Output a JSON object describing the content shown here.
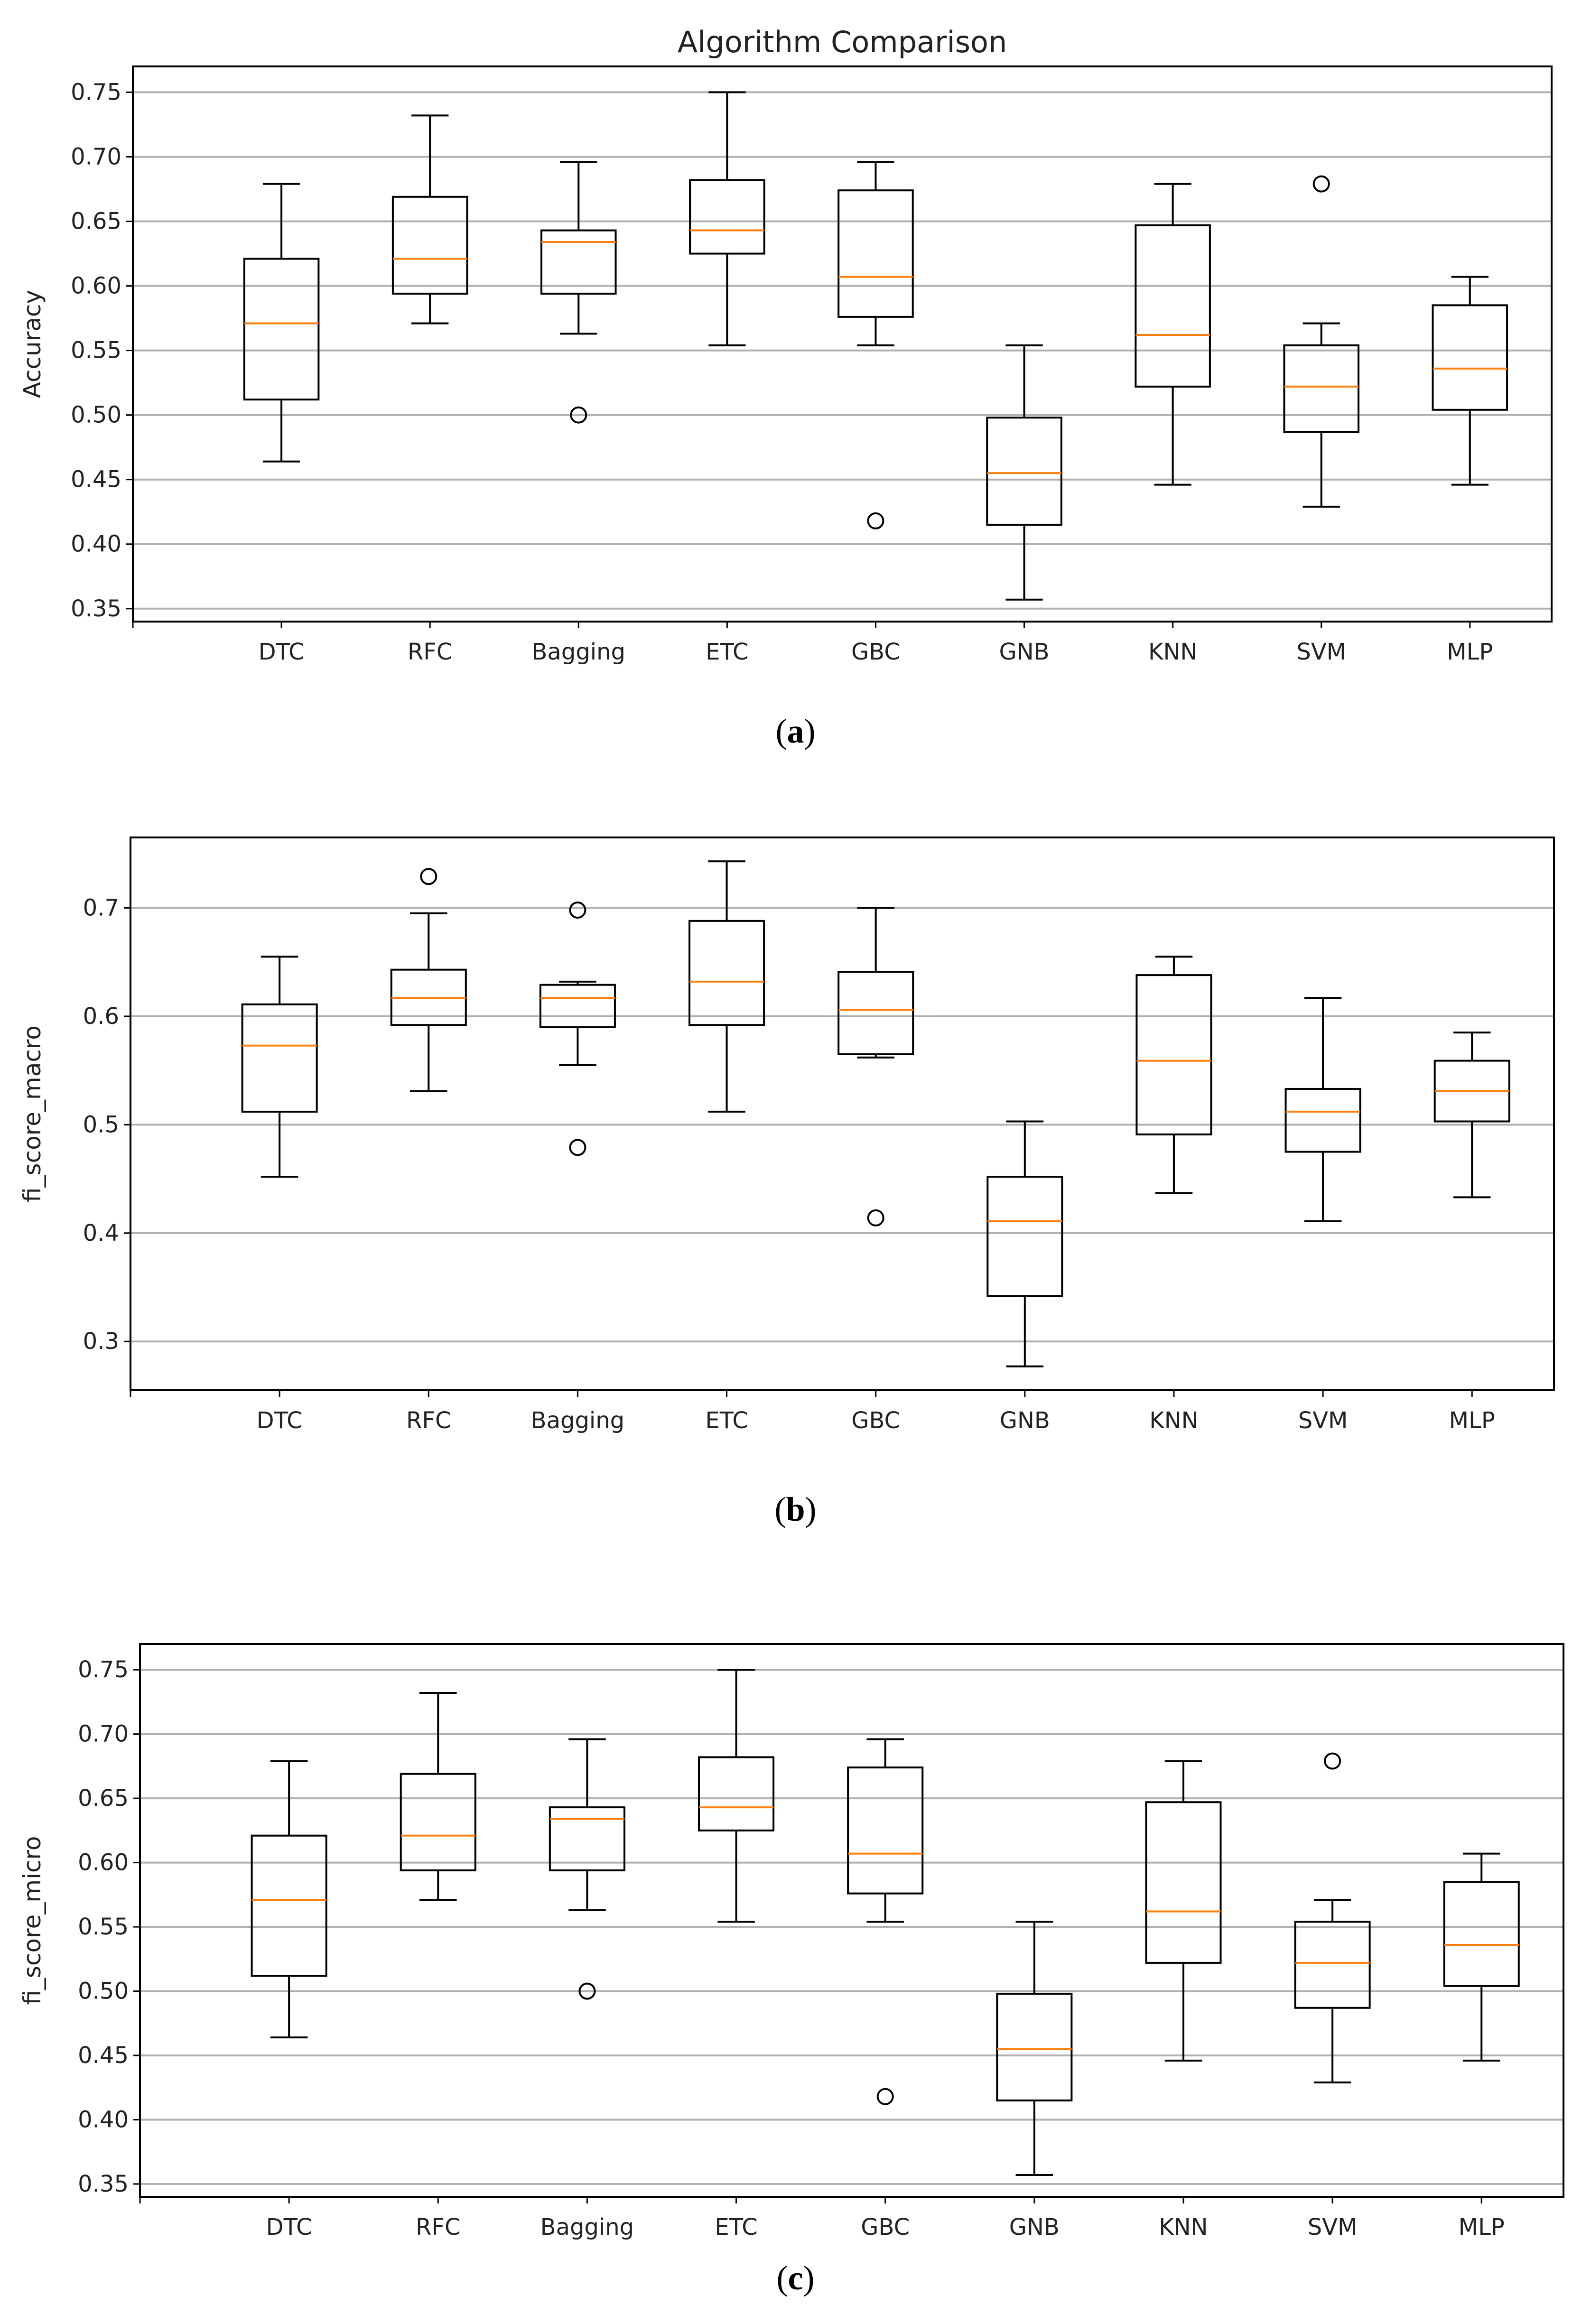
{
  "colors": {
    "box": "#000000",
    "median": "#ff7f0e",
    "grid": "#b0b0b0"
  },
  "chart_data": [
    {
      "type": "boxplot",
      "caption_letter": "a",
      "title": "Algorithm Comparison",
      "xlabel": "",
      "ylabel": "Accuracy",
      "ylim": [
        0.34,
        0.77
      ],
      "yticks": [
        0.35,
        0.4,
        0.45,
        0.5,
        0.55,
        0.6,
        0.65,
        0.7,
        0.75
      ],
      "ytick_labels": [
        "0.35",
        "0.40",
        "0.45",
        "0.50",
        "0.55",
        "0.60",
        "0.65",
        "0.70",
        "0.75"
      ],
      "grid": "horizontal",
      "categories": [
        "DTC",
        "RFC",
        "Bagging",
        "ETC",
        "GBC",
        "GNB",
        "KNN",
        "SVM",
        "MLP"
      ],
      "boxes": [
        {
          "whislo": 0.464,
          "q1": 0.512,
          "med": 0.571,
          "q3": 0.621,
          "whishi": 0.679,
          "fliers": []
        },
        {
          "whislo": 0.571,
          "q1": 0.594,
          "med": 0.621,
          "q3": 0.669,
          "whishi": 0.732,
          "fliers": []
        },
        {
          "whislo": 0.563,
          "q1": 0.594,
          "med": 0.634,
          "q3": 0.643,
          "whishi": 0.696,
          "fliers": [
            0.5
          ]
        },
        {
          "whislo": 0.554,
          "q1": 0.625,
          "med": 0.643,
          "q3": 0.682,
          "whishi": 0.75,
          "fliers": []
        },
        {
          "whislo": 0.554,
          "q1": 0.576,
          "med": 0.607,
          "q3": 0.674,
          "whishi": 0.696,
          "fliers": [
            0.418
          ]
        },
        {
          "whislo": 0.357,
          "q1": 0.415,
          "med": 0.455,
          "q3": 0.498,
          "whishi": 0.554,
          "fliers": []
        },
        {
          "whislo": 0.446,
          "q1": 0.522,
          "med": 0.562,
          "q3": 0.647,
          "whishi": 0.679,
          "fliers": []
        },
        {
          "whislo": 0.429,
          "q1": 0.487,
          "med": 0.522,
          "q3": 0.554,
          "whishi": 0.571,
          "fliers": [
            0.679
          ]
        },
        {
          "whislo": 0.446,
          "q1": 0.504,
          "med": 0.536,
          "q3": 0.585,
          "whishi": 0.607,
          "fliers": []
        }
      ]
    },
    {
      "type": "boxplot",
      "caption_letter": "b",
      "title": "",
      "xlabel": "",
      "ylabel": "fi_score_macro",
      "ylim": [
        0.255,
        0.765
      ],
      "yticks": [
        0.3,
        0.4,
        0.5,
        0.6,
        0.7
      ],
      "ytick_labels": [
        "0.3",
        "0.4",
        "0.5",
        "0.6",
        "0.7"
      ],
      "grid": "horizontal",
      "categories": [
        "DTC",
        "RFC",
        "Bagging",
        "ETC",
        "GBC",
        "GNB",
        "KNN",
        "SVM",
        "MLP"
      ],
      "boxes": [
        {
          "whislo": 0.452,
          "q1": 0.512,
          "med": 0.573,
          "q3": 0.611,
          "whishi": 0.655,
          "fliers": []
        },
        {
          "whislo": 0.531,
          "q1": 0.592,
          "med": 0.617,
          "q3": 0.643,
          "whishi": 0.695,
          "fliers": [
            0.729
          ]
        },
        {
          "whislo": 0.555,
          "q1": 0.59,
          "med": 0.617,
          "q3": 0.629,
          "whishi": 0.632,
          "fliers": [
            0.698,
            0.479
          ]
        },
        {
          "whislo": 0.512,
          "q1": 0.592,
          "med": 0.632,
          "q3": 0.688,
          "whishi": 0.743,
          "fliers": []
        },
        {
          "whislo": 0.562,
          "q1": 0.565,
          "med": 0.606,
          "q3": 0.641,
          "whishi": 0.7,
          "fliers": [
            0.414
          ]
        },
        {
          "whislo": 0.277,
          "q1": 0.342,
          "med": 0.411,
          "q3": 0.452,
          "whishi": 0.503,
          "fliers": []
        },
        {
          "whislo": 0.437,
          "q1": 0.491,
          "med": 0.559,
          "q3": 0.638,
          "whishi": 0.655,
          "fliers": []
        },
        {
          "whislo": 0.411,
          "q1": 0.475,
          "med": 0.512,
          "q3": 0.533,
          "whishi": 0.617,
          "fliers": []
        },
        {
          "whislo": 0.433,
          "q1": 0.503,
          "med": 0.531,
          "q3": 0.559,
          "whishi": 0.585,
          "fliers": []
        }
      ]
    },
    {
      "type": "boxplot",
      "caption_letter": "c",
      "title": "",
      "xlabel": "",
      "ylabel": "fi_score_micro",
      "ylim": [
        0.34,
        0.77
      ],
      "yticks": [
        0.35,
        0.4,
        0.45,
        0.5,
        0.55,
        0.6,
        0.65,
        0.7,
        0.75
      ],
      "ytick_labels": [
        "0.35",
        "0.40",
        "0.45",
        "0.50",
        "0.55",
        "0.60",
        "0.65",
        "0.70",
        "0.75"
      ],
      "grid": "horizontal",
      "categories": [
        "DTC",
        "RFC",
        "Bagging",
        "ETC",
        "GBC",
        "GNB",
        "KNN",
        "SVM",
        "MLP"
      ],
      "boxes": [
        {
          "whislo": 0.464,
          "q1": 0.512,
          "med": 0.571,
          "q3": 0.621,
          "whishi": 0.679,
          "fliers": []
        },
        {
          "whislo": 0.571,
          "q1": 0.594,
          "med": 0.621,
          "q3": 0.669,
          "whishi": 0.732,
          "fliers": []
        },
        {
          "whislo": 0.563,
          "q1": 0.594,
          "med": 0.634,
          "q3": 0.643,
          "whishi": 0.696,
          "fliers": [
            0.5
          ]
        },
        {
          "whislo": 0.554,
          "q1": 0.625,
          "med": 0.643,
          "q3": 0.682,
          "whishi": 0.75,
          "fliers": []
        },
        {
          "whislo": 0.554,
          "q1": 0.576,
          "med": 0.607,
          "q3": 0.674,
          "whishi": 0.696,
          "fliers": [
            0.418
          ]
        },
        {
          "whislo": 0.357,
          "q1": 0.415,
          "med": 0.455,
          "q3": 0.498,
          "whishi": 0.554,
          "fliers": []
        },
        {
          "whislo": 0.446,
          "q1": 0.522,
          "med": 0.562,
          "q3": 0.647,
          "whishi": 0.679,
          "fliers": []
        },
        {
          "whislo": 0.429,
          "q1": 0.487,
          "med": 0.522,
          "q3": 0.554,
          "whishi": 0.571,
          "fliers": [
            0.679
          ]
        },
        {
          "whislo": 0.446,
          "q1": 0.504,
          "med": 0.536,
          "q3": 0.585,
          "whishi": 0.607,
          "fliers": []
        }
      ]
    }
  ]
}
